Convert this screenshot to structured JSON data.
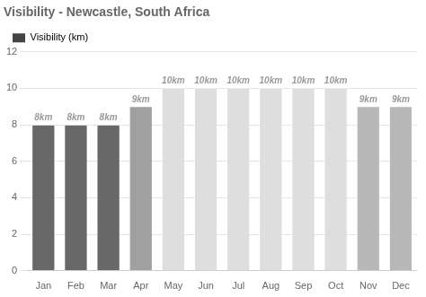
{
  "chart_data": {
    "type": "bar",
    "title": "Visibility - Newcastle, South Africa",
    "categories": [
      "Jan",
      "Feb",
      "Mar",
      "Apr",
      "May",
      "Jun",
      "Jul",
      "Aug",
      "Sep",
      "Oct",
      "Nov",
      "Dec"
    ],
    "series": [
      {
        "name": "Visibility (km)",
        "color": "#444444",
        "colors": [
          "#686868",
          "#686868",
          "#686868",
          "#a0a0a0",
          "#dedede",
          "#dedede",
          "#dedede",
          "#dedede",
          "#dedede",
          "#dedede",
          "#b8b8b8",
          "#b8b8b8"
        ],
        "values": [
          8,
          8,
          8,
          9,
          10,
          10,
          10,
          10,
          10,
          10,
          9,
          9
        ],
        "value_labels": [
          "8km",
          "8km",
          "8km",
          "9km",
          "10km",
          "10km",
          "10km",
          "10km",
          "10km",
          "10km",
          "9km",
          "9km"
        ]
      }
    ],
    "ylim": [
      0,
      12
    ],
    "yticks": [
      0,
      2,
      4,
      6,
      8,
      10,
      12
    ],
    "grid": "y",
    "legend": "upper left",
    "data_labels": true
  }
}
